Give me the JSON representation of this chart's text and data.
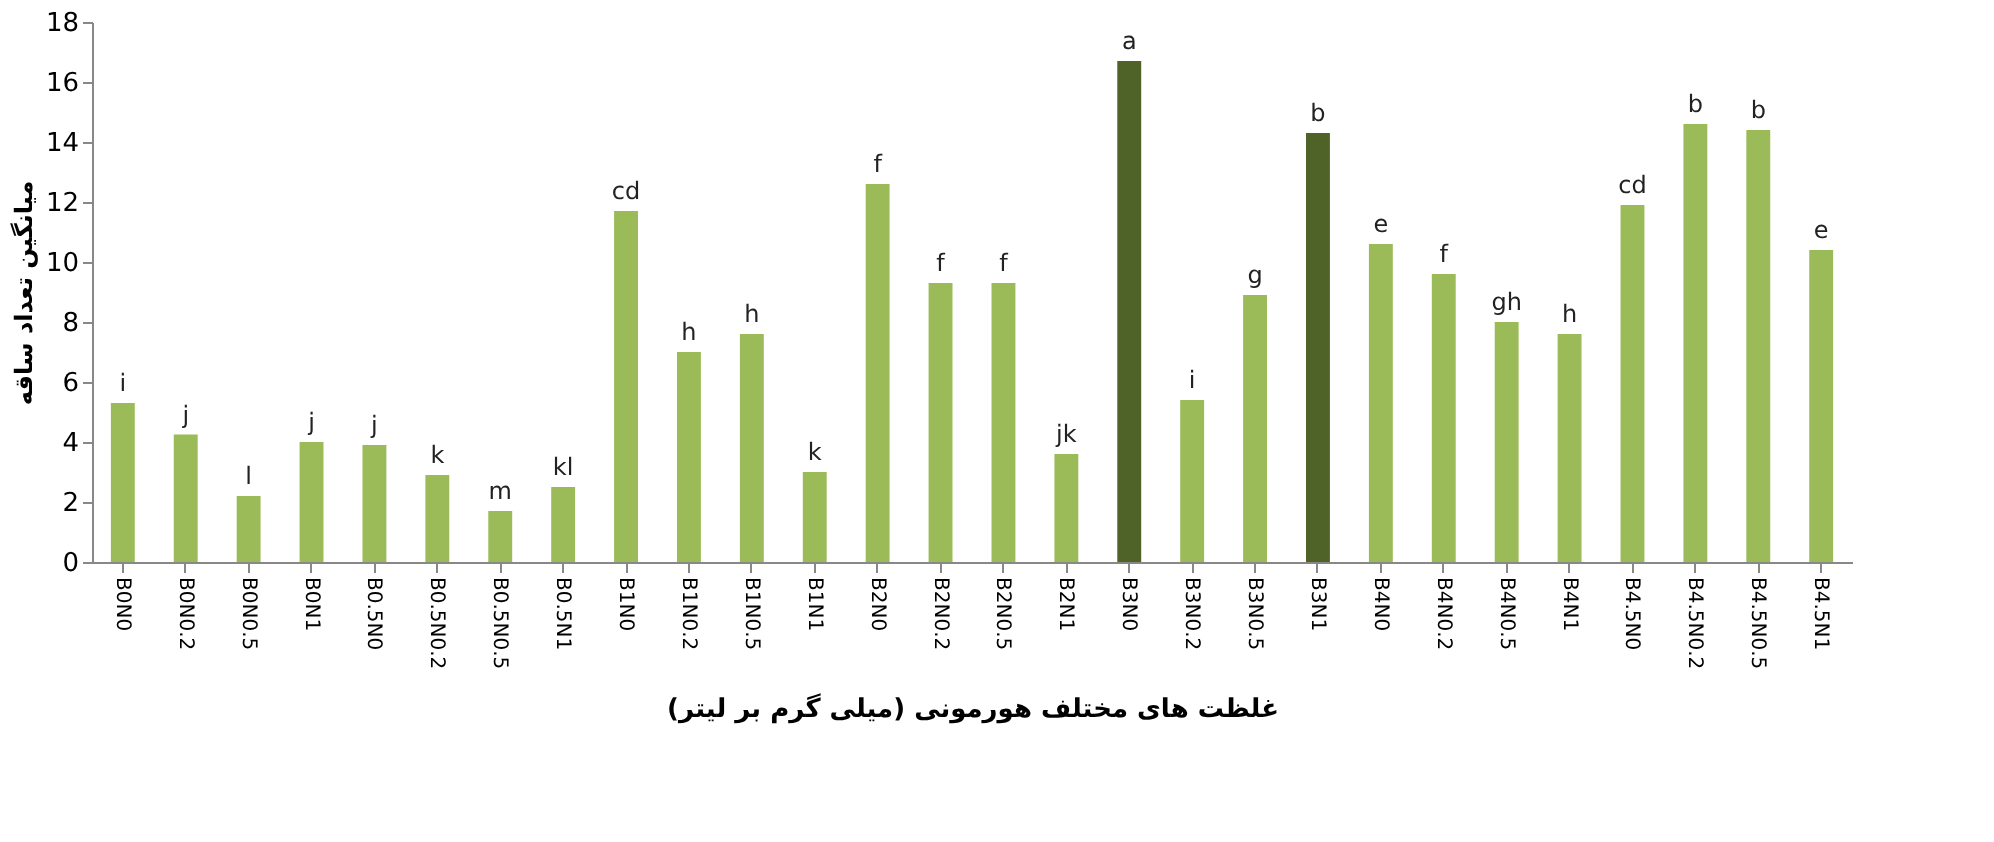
{
  "chart_data": {
    "type": "bar",
    "xlabel": "غلظت های مختلف هورمونی (میلی گرم بر لیتر)",
    "ylabel": "میانگین تعداد ساقه",
    "categories": [
      "B0N0",
      "B0N0.2",
      "B0N0.5",
      "B0N1",
      "B0.5N0",
      "B0.5N0.2",
      "B0.5N0.5",
      "B0.5N1",
      "B1N0",
      "B1N0.2",
      "B1N0.5",
      "B1N1",
      "B2N0",
      "B2N0.2",
      "B2N0.5",
      "B2N1",
      "B3N0",
      "B3N0.2",
      "B3N0.5",
      "B3N1",
      "B4N0",
      "B4N0.2",
      "B4N0.5",
      "B4N1",
      "B4.5N0",
      "B4.5N0.2",
      "B4.5N0.5",
      "B4.5N1"
    ],
    "values": [
      5.3,
      4.25,
      2.2,
      4.0,
      3.9,
      2.9,
      1.7,
      2.5,
      11.7,
      7.0,
      7.6,
      3.0,
      12.6,
      9.3,
      9.3,
      3.6,
      16.7,
      5.4,
      8.9,
      14.3,
      10.6,
      9.6,
      8.0,
      7.6,
      11.9,
      14.6,
      14.4,
      10.4
    ],
    "colors": [
      "#9bbb59",
      "#9bbb59",
      "#9bbb59",
      "#9bbb59",
      "#9bbb59",
      "#9bbb59",
      "#9bbb59",
      "#9bbb59",
      "#9bbb59",
      "#9bbb59",
      "#9bbb59",
      "#9bbb59",
      "#9bbb59",
      "#9bbb59",
      "#9bbb59",
      "#9bbb59",
      "#4f6228",
      "#9bbb59",
      "#9bbb59",
      "#4f6228",
      "#9bbb59",
      "#9bbb59",
      "#9bbb59",
      "#9bbb59",
      "#9bbb59",
      "#9bbb59",
      "#9bbb59",
      "#9bbb59"
    ],
    "value_labels": [
      "i",
      "j",
      "l",
      "j",
      "j",
      "k",
      "m",
      "kl",
      "cd",
      "h",
      "h",
      "k",
      "f",
      "f",
      "f",
      "jk",
      "a",
      "i",
      "g",
      "b",
      "e",
      "f",
      "gh",
      "h",
      "cd",
      "b",
      "b",
      "e"
    ],
    "ylim": [
      0,
      18
    ],
    "yticks": [
      0,
      2,
      4,
      6,
      8,
      10,
      12,
      14,
      16,
      18
    ],
    "grid": false
  }
}
